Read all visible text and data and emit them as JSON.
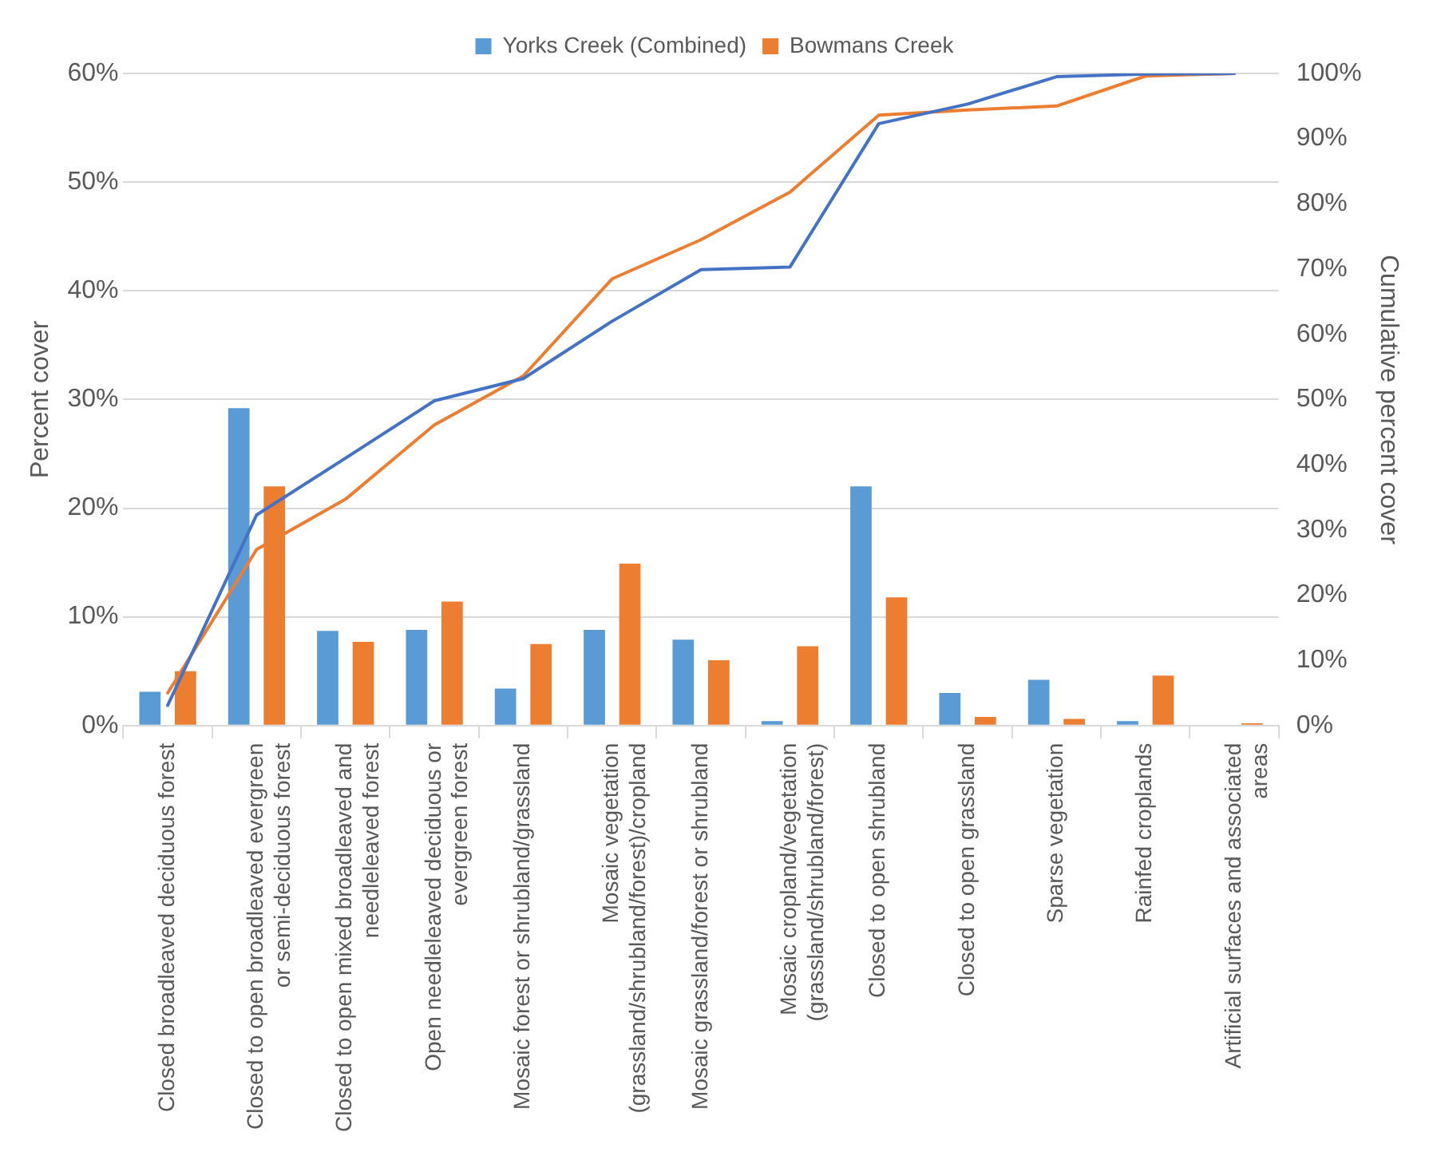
{
  "chart_data": {
    "type": "bar",
    "ylabel": "Percent cover",
    "y2label": "Cumulative percent cover",
    "categories": [
      "Closed broadleaved deciduous forest",
      "Closed to open broadleaved evergreen or semi-deciduous forest",
      "Closed to open mixed broadleaved and needleleaved forest",
      "Open needleleaved deciduous or evergreen forest",
      "Mosaic forest or shrubland/grassland",
      "Mosaic vegetation (grassland/shrubland/forest)/cropland",
      "Mosaic grassland/forest or shrubland",
      "Mosaic cropland/vegetation (grassland/shrubland/forest)",
      "Closed to open shrubland",
      "Closed to open grassland",
      "Sparse vegetation",
      "Rainfed croplands",
      "Artificial surfaces and associated areas"
    ],
    "series": [
      {
        "name": "Yorks Creek (Combined)",
        "color": "#5b9bd5",
        "values": [
          3.1,
          29.2,
          8.7,
          8.8,
          3.4,
          8.8,
          7.9,
          0.4,
          22.0,
          3.0,
          4.2,
          0.4,
          0
        ]
      },
      {
        "name": "Bowmans Creek",
        "color": "#ed7d31",
        "values": [
          5.0,
          22.0,
          7.7,
          11.4,
          7.5,
          14.9,
          6.0,
          7.3,
          11.8,
          0.8,
          0.6,
          4.6,
          0.2
        ]
      },
      {
        "type": "line",
        "axis": "y2",
        "color": "#4472c4",
        "values": [
          3.1,
          32.3,
          41.0,
          49.8,
          53.2,
          62.0,
          69.9,
          70.3,
          92.3,
          95.3,
          99.5,
          99.9,
          100
        ]
      },
      {
        "type": "line",
        "axis": "y2",
        "color": "#ed7d31",
        "values": [
          5.0,
          27.0,
          34.7,
          46.1,
          53.6,
          68.5,
          74.5,
          81.8,
          93.6,
          94.4,
          95.0,
          99.6,
          100
        ]
      }
    ],
    "ylim": [
      0,
      60
    ],
    "yticks": [
      {
        "value": 0,
        "label": "0%"
      },
      {
        "value": 10,
        "label": "10%"
      },
      {
        "value": 20,
        "label": "20%"
      },
      {
        "value": 30,
        "label": "30%"
      },
      {
        "value": 40,
        "label": "40%"
      },
      {
        "value": 50,
        "label": "50%"
      },
      {
        "value": 60,
        "label": "60%"
      }
    ],
    "y2lim": [
      0,
      100
    ],
    "y2ticks": [
      {
        "value": 0,
        "label": "0%"
      },
      {
        "value": 10,
        "label": "10%"
      },
      {
        "value": 20,
        "label": "20%"
      },
      {
        "value": 30,
        "label": "30%"
      },
      {
        "value": 40,
        "label": "40%"
      },
      {
        "value": 50,
        "label": "50%"
      },
      {
        "value": 60,
        "label": "60%"
      },
      {
        "value": 70,
        "label": "70%"
      },
      {
        "value": 80,
        "label": "80%"
      },
      {
        "value": 90,
        "label": "90%"
      },
      {
        "value": 100,
        "label": "100%"
      }
    ],
    "grid": "y",
    "legend": "top",
    "marker": "none"
  }
}
